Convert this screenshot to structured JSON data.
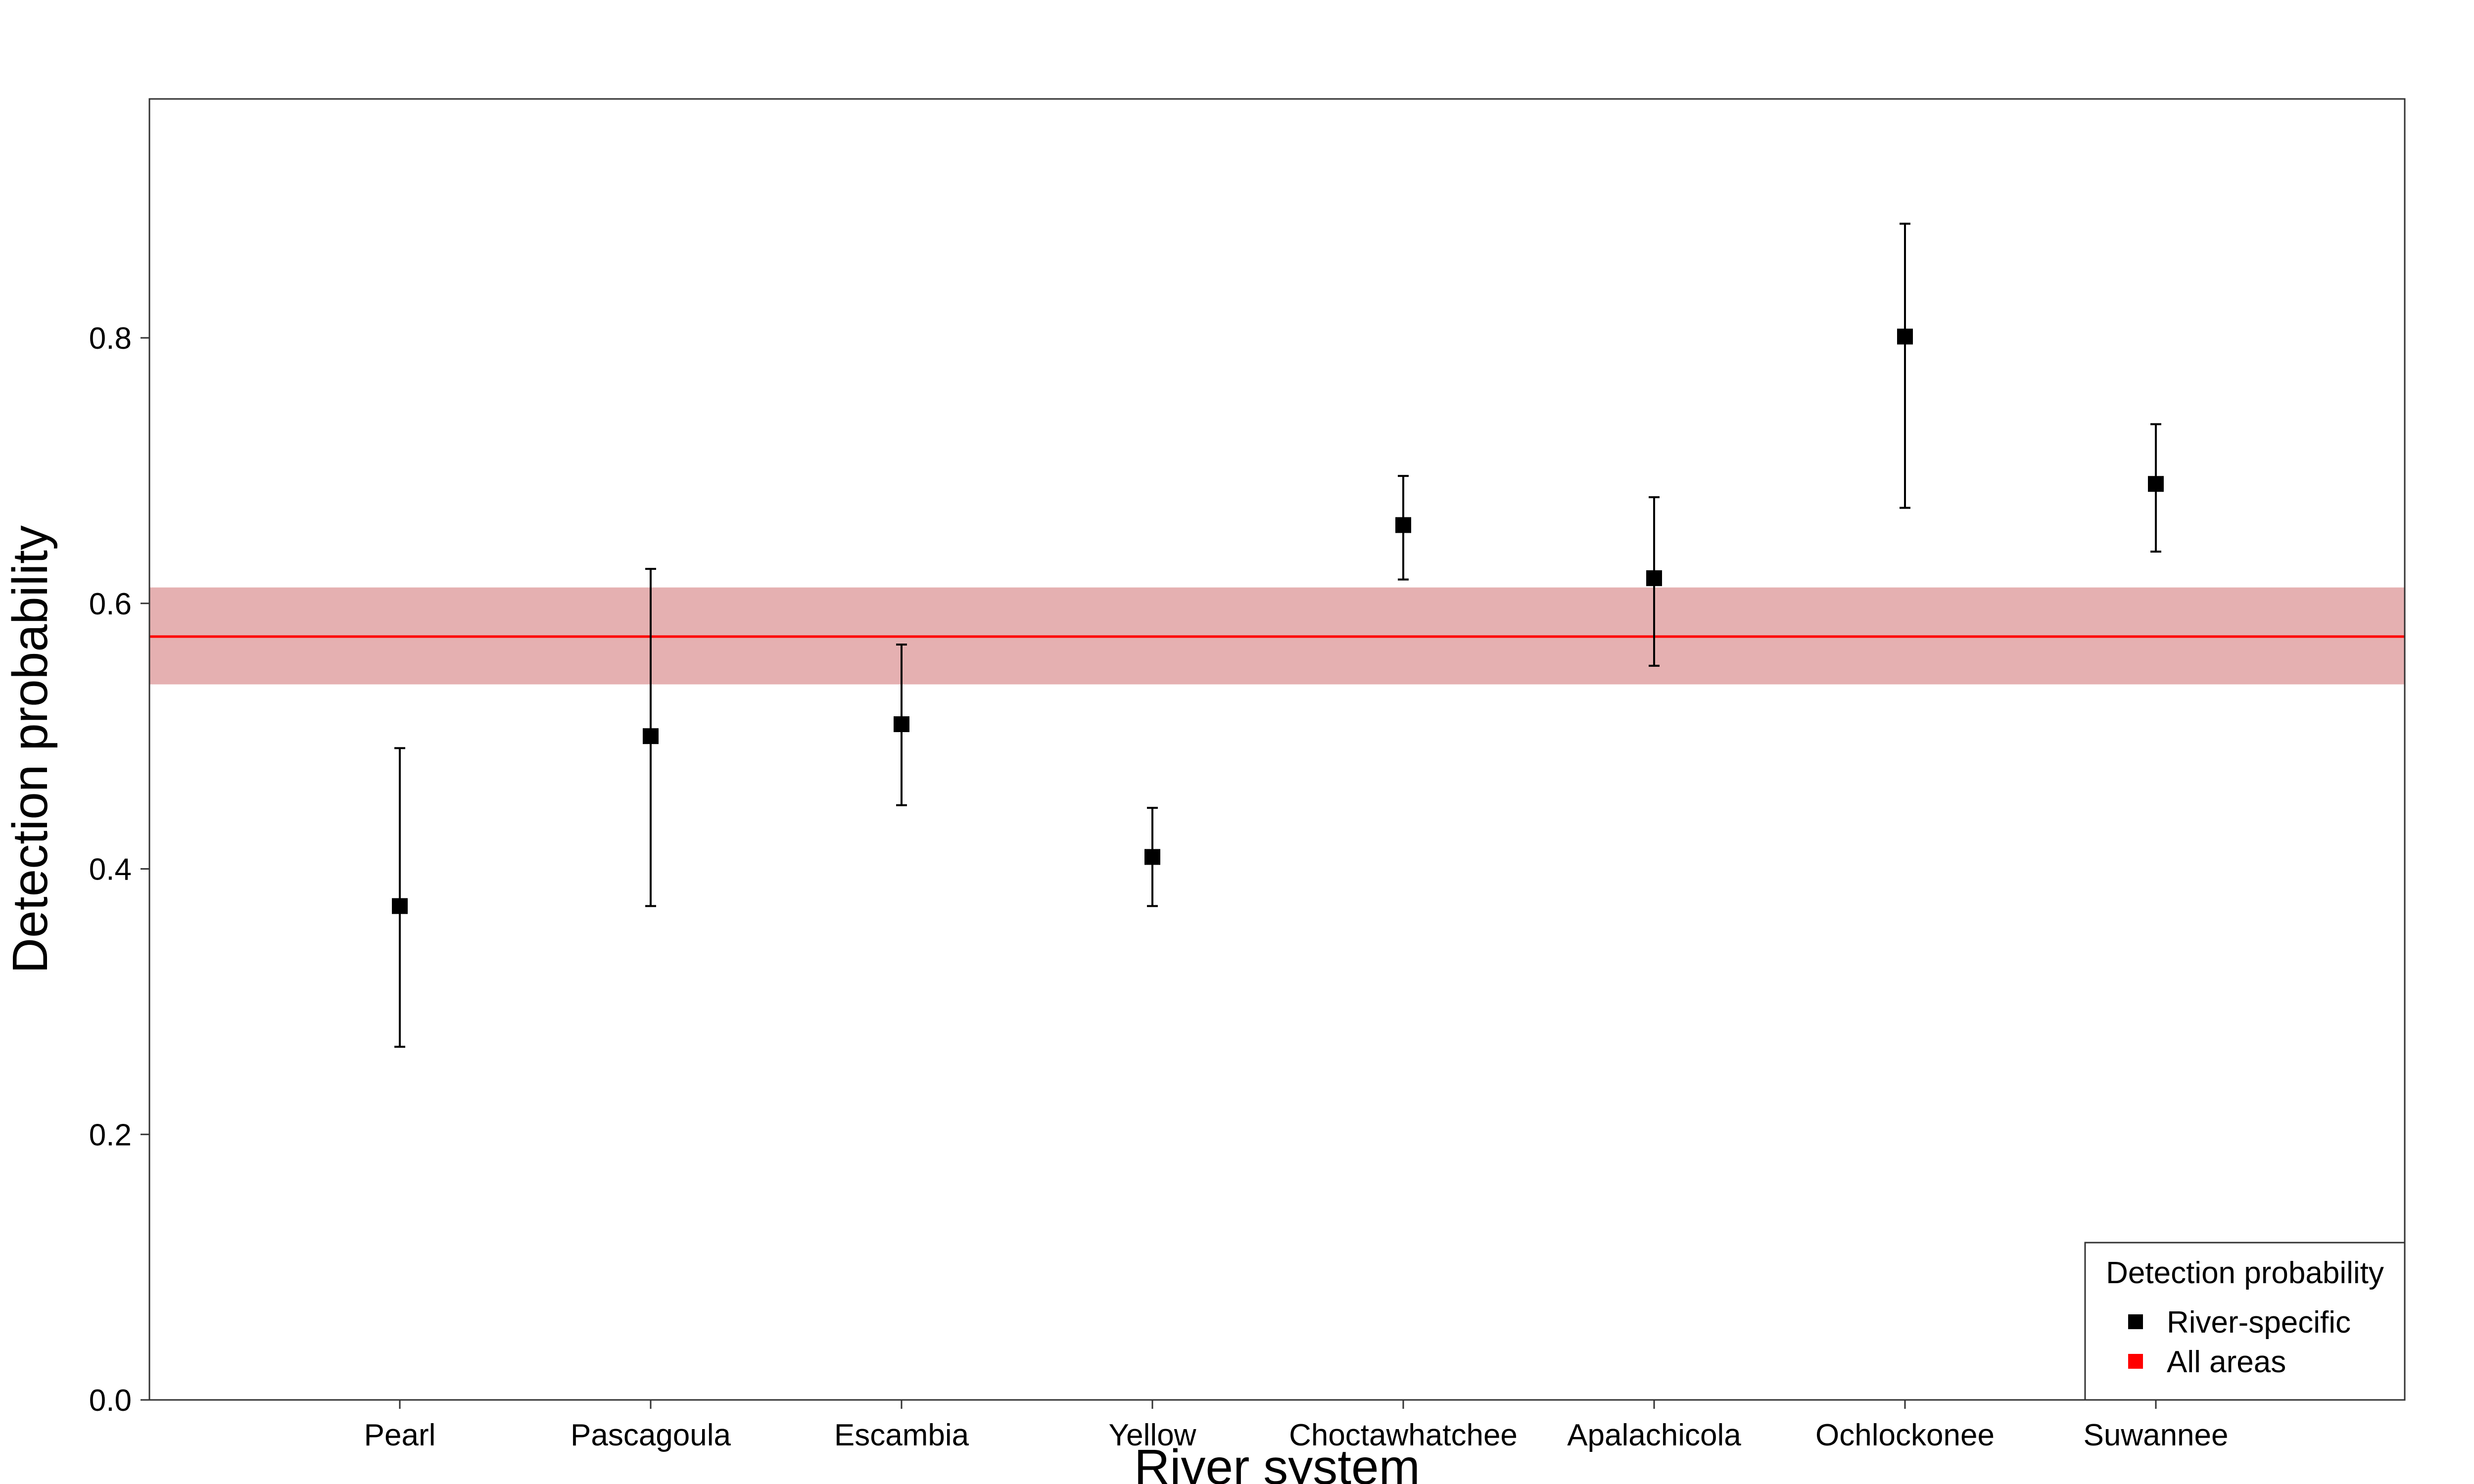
{
  "chart_data": {
    "type": "scatter",
    "title": "",
    "xlabel": "River system",
    "ylabel": "Detection probability",
    "categories": [
      "Pearl",
      "Pascagoula",
      "Escambia",
      "Yellow",
      "Choctawhatchee",
      "Apalachicola",
      "Ochlockonee",
      "Suwannee"
    ],
    "series": [
      {
        "name": "River-specific",
        "color": "#000000",
        "marker": "square",
        "values": [
          0.372,
          0.5,
          0.509,
          0.409,
          0.659,
          0.619,
          0.801,
          0.69
        ],
        "lower": [
          0.266,
          0.372,
          0.448,
          0.372,
          0.618,
          0.553,
          0.672,
          0.639
        ],
        "upper": [
          0.491,
          0.626,
          0.569,
          0.446,
          0.696,
          0.68,
          0.886,
          0.735
        ]
      },
      {
        "name": "All areas",
        "color": "#ff0000",
        "band_color": "#e5b0b1",
        "value": 0.575,
        "lower": 0.539,
        "upper": 0.612
      }
    ],
    "ylim": [
      0,
      0.98
    ],
    "yticks": [
      0.0,
      0.2,
      0.4,
      0.6,
      0.8
    ],
    "ytick_labels": [
      "0.0",
      "0.2",
      "0.4",
      "0.6",
      "0.8"
    ],
    "grid": false,
    "legend": {
      "title": "Detection probability",
      "placement": "bottom-right",
      "entries": [
        "River-specific",
        "All areas"
      ]
    }
  }
}
